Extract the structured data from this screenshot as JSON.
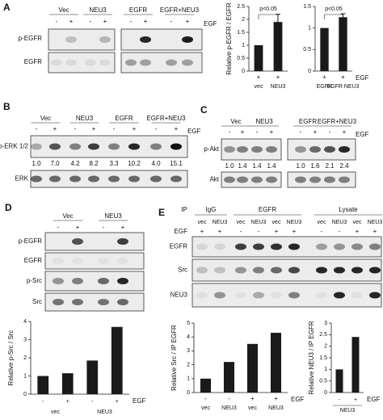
{
  "panel_a": {
    "letter": "A",
    "groups": [
      "Vec",
      "NEU3",
      "EGFR",
      "EGFR+NEU3"
    ],
    "egf_signs": [
      "-",
      "+",
      "-",
      "+",
      "-",
      "+",
      "-",
      "+"
    ],
    "egf_label": "EGF",
    "rows": [
      "p-EGFR",
      "EGFR"
    ]
  },
  "panel_b": {
    "letter": "B",
    "groups": [
      "Vec",
      "NEU3",
      "EGFR",
      "EGFR+NEU3"
    ],
    "egf_signs": [
      "-",
      "+",
      "-",
      "+",
      "-",
      "+",
      "-",
      "+"
    ],
    "egf_label": "EGF",
    "rows": [
      "p-ERK 1/2",
      "ERK"
    ],
    "ratios": [
      "1.0",
      "7.0",
      "4.2",
      "8.2",
      "3.3",
      "10.2",
      "4.0",
      "15.1"
    ]
  },
  "panel_c": {
    "letter": "C",
    "groups": [
      "Vec",
      "NEU3",
      "EGFR",
      "EGFR+NEU3"
    ],
    "egf_signs": [
      "-",
      "+",
      "-",
      "+",
      "-",
      "+",
      "-",
      "+"
    ],
    "egf_label": "EGF",
    "rows": [
      "p-Akt",
      "Akt"
    ],
    "ratios": [
      "1.0",
      "1.4",
      "1.4",
      "1.4",
      "1.0",
      "1.6",
      "2.1",
      "2.4"
    ]
  },
  "panel_d": {
    "letter": "D",
    "groups": [
      "Vec",
      "NEU3"
    ],
    "egf_signs": [
      "-",
      "+",
      "-",
      "+"
    ],
    "rows": [
      "p-EGFR",
      "EGFR",
      "p-Src",
      "Src"
    ]
  },
  "panel_e": {
    "letter": "E",
    "ip_label": "IP",
    "ip_groups": [
      "IgG",
      "EGFR",
      "Lysate"
    ],
    "lanes": [
      "vec",
      "NEU3",
      "vec",
      "NEU3",
      "vec",
      "NEU3",
      "vec",
      "NEU3",
      "vec",
      "NEU3"
    ],
    "egf_label": "EGF",
    "egf_signs": [
      "+",
      "+",
      "-",
      "-",
      "+",
      "+",
      "-",
      "-",
      "+",
      "+"
    ],
    "rows": [
      "EGFR",
      "Src",
      "NEU3"
    ]
  },
  "chart_data": [
    {
      "type": "bar",
      "y_label": "Relative p-EGFR / EGFR",
      "categories": [
        "vec",
        "NEU3"
      ],
      "egf_signs": [
        "+",
        "+"
      ],
      "values": [
        1,
        1.9
      ],
      "errors": [
        0,
        0.3
      ],
      "annotation": "p<0.05",
      "color": "#1a1a1a",
      "ylim": [
        0,
        2.5
      ],
      "yticks": [
        0,
        0.5,
        1,
        1.5,
        2,
        2.5
      ]
    },
    {
      "type": "bar",
      "categories": [
        "EGFR",
        "EGFR NEU3"
      ],
      "egf_signs": [
        "+",
        "+"
      ],
      "egf_label": "EGF",
      "values": [
        1,
        1.25
      ],
      "errors": [
        0,
        0.08
      ],
      "annotation": "p<0.05",
      "color": "#1a1a1a",
      "ylim": [
        0,
        1.5
      ],
      "yticks": [
        0,
        0.5,
        1,
        1.5
      ]
    },
    {
      "type": "bar",
      "y_label": "Relative p-Src / Src",
      "categories": [
        "-",
        "+",
        "-",
        "+"
      ],
      "groups": [
        "vec",
        "NEU3"
      ],
      "egf_label": "EGF",
      "values": [
        1,
        1.15,
        1.85,
        3.7
      ],
      "color": "#1a1a1a",
      "ylim": [
        0,
        4
      ],
      "yticks": [
        0,
        1,
        2,
        3,
        4
      ]
    },
    {
      "type": "bar",
      "y_label": "Relative Src / IP EGFR",
      "categories": [
        "vec",
        "NEU3",
        "vec",
        "NEU3"
      ],
      "egf_signs": [
        "-",
        "-",
        "+",
        "+"
      ],
      "egf_label": "EGF",
      "values": [
        1,
        2.2,
        3.5,
        4.3
      ],
      "color": "#1a1a1a",
      "ylim": [
        0,
        5
      ],
      "yticks": [
        0,
        1,
        2,
        3,
        4,
        5
      ]
    },
    {
      "type": "bar",
      "y_label": "Relative NEU3 / IP EGFR",
      "categories": [
        "-",
        "+"
      ],
      "groups": [
        "NEU3"
      ],
      "egf_label": "EGF",
      "values": [
        1,
        2.4
      ],
      "color": "#1a1a1a",
      "ylim": [
        0,
        3
      ],
      "yticks": [
        0,
        0.5,
        1,
        1.5,
        2,
        2.5,
        3
      ]
    }
  ]
}
